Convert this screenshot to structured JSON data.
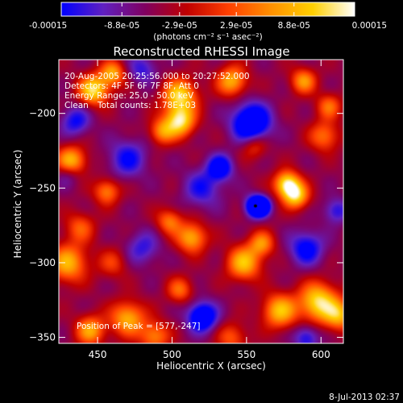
{
  "colorbar": {
    "ticks": [
      "-0.00015",
      "-8.8e-05",
      "-2.9e-05",
      "2.9e-05",
      "8.8e-05",
      "0.00015"
    ],
    "tick_values": [
      -0.00015,
      -8.8e-05,
      -2.9e-05,
      2.9e-05,
      8.8e-05,
      0.00015
    ],
    "range": [
      -0.00015,
      0.00015
    ],
    "units_label": "(photons cm⁻² s⁻¹ asec⁻²)",
    "colors": [
      "#0000ff",
      "#6020c0",
      "#800060",
      "#c00000",
      "#ff4000",
      "#ff9000",
      "#ffd000",
      "#ffffff"
    ]
  },
  "chart_data": {
    "type": "heatmap",
    "title": "Reconstructed RHESSI Image",
    "xlabel": "Heliocentric X (arcsec)",
    "ylabel": "Heliocentric Y (arcsec)",
    "xlim": [
      424,
      615
    ],
    "ylim": [
      -354,
      -164
    ],
    "xticks": [
      450,
      500,
      550,
      600
    ],
    "yticks": [
      -200,
      -250,
      -300,
      -350
    ],
    "annotations": {
      "time_range": "20-Aug-2005 20:25:56.000 to 20:27:52.000",
      "detectors": "Detectors: 4F 5F 6F 7F 8F, Att 0",
      "energy_range": "Energy Range: 25.0 - 50.0 keV",
      "clean_label": "Clean",
      "total_counts": "Total counts: 1.78E+03",
      "peak_position": "Position of Peak = [577,-247]"
    },
    "peak": {
      "x": 577,
      "y": -247
    },
    "components": [
      {
        "x": 447,
        "y": -184,
        "amp": 0.95,
        "s": 7
      },
      {
        "x": 460,
        "y": -173,
        "amp": 0.7,
        "s": 6
      },
      {
        "x": 432,
        "y": -232,
        "amp": 0.85,
        "s": 7
      },
      {
        "x": 430,
        "y": -300,
        "amp": 0.75,
        "s": 9
      },
      {
        "x": 438,
        "y": -276,
        "amp": 0.45,
        "s": 7
      },
      {
        "x": 456,
        "y": -252,
        "amp": 0.6,
        "s": 6
      },
      {
        "x": 505,
        "y": -188,
        "amp": 0.9,
        "s": 8
      },
      {
        "x": 505,
        "y": -205,
        "amp": 0.95,
        "s": 7
      },
      {
        "x": 493,
        "y": -212,
        "amp": 0.6,
        "s": 6
      },
      {
        "x": 540,
        "y": -178,
        "amp": 0.75,
        "s": 7
      },
      {
        "x": 577,
        "y": -247,
        "amp": 1.0,
        "s": 6
      },
      {
        "x": 583,
        "y": -255,
        "amp": 0.85,
        "s": 6
      },
      {
        "x": 602,
        "y": -215,
        "amp": 0.55,
        "s": 7
      },
      {
        "x": 588,
        "y": -178,
        "amp": 0.65,
        "s": 6
      },
      {
        "x": 605,
        "y": -195,
        "amp": 0.5,
        "s": 6
      },
      {
        "x": 598,
        "y": -326,
        "amp": 0.95,
        "s": 9
      },
      {
        "x": 572,
        "y": -332,
        "amp": 0.8,
        "s": 8
      },
      {
        "x": 612,
        "y": -335,
        "amp": 0.7,
        "s": 7
      },
      {
        "x": 548,
        "y": -300,
        "amp": 0.8,
        "s": 8
      },
      {
        "x": 560,
        "y": -287,
        "amp": 0.6,
        "s": 6
      },
      {
        "x": 513,
        "y": -283,
        "amp": 0.75,
        "s": 7
      },
      {
        "x": 498,
        "y": -272,
        "amp": 0.55,
        "s": 6
      },
      {
        "x": 505,
        "y": -318,
        "amp": 0.5,
        "s": 6
      },
      {
        "x": 470,
        "y": -337,
        "amp": 0.75,
        "s": 8
      },
      {
        "x": 445,
        "y": -345,
        "amp": 0.7,
        "s": 7
      },
      {
        "x": 488,
        "y": -349,
        "amp": 0.6,
        "s": 7
      },
      {
        "x": 540,
        "y": -350,
        "amp": 0.45,
        "s": 7
      },
      {
        "x": 555,
        "y": -222,
        "amp": 0.4,
        "s": 6
      },
      {
        "x": 460,
        "y": -300,
        "amp": 0.35,
        "s": 7
      },
      {
        "x": 553,
        "y": -206,
        "amp": -0.95,
        "s": 9
      },
      {
        "x": 556,
        "y": -262,
        "amp": -1.0,
        "s": 5
      },
      {
        "x": 560,
        "y": -262,
        "amp": -0.7,
        "s": 4
      },
      {
        "x": 520,
        "y": -336,
        "amp": -0.85,
        "s": 7
      },
      {
        "x": 532,
        "y": -236,
        "amp": -0.7,
        "s": 6
      },
      {
        "x": 470,
        "y": -230,
        "amp": -0.5,
        "s": 9
      },
      {
        "x": 435,
        "y": -205,
        "amp": -0.5,
        "s": 7
      },
      {
        "x": 590,
        "y": -290,
        "amp": -0.6,
        "s": 8
      },
      {
        "x": 430,
        "y": -240,
        "amp": -0.35,
        "s": 6
      },
      {
        "x": 520,
        "y": -250,
        "amp": -0.45,
        "s": 9
      },
      {
        "x": 590,
        "y": -350,
        "amp": -0.5,
        "s": 6
      },
      {
        "x": 480,
        "y": -290,
        "amp": -0.4,
        "s": 8
      },
      {
        "x": 610,
        "y": -265,
        "amp": -0.45,
        "s": 6
      },
      {
        "x": 480,
        "y": -170,
        "amp": -0.4,
        "s": 7
      }
    ]
  },
  "footer": {
    "date": "8-Jul-2013 02:37"
  }
}
